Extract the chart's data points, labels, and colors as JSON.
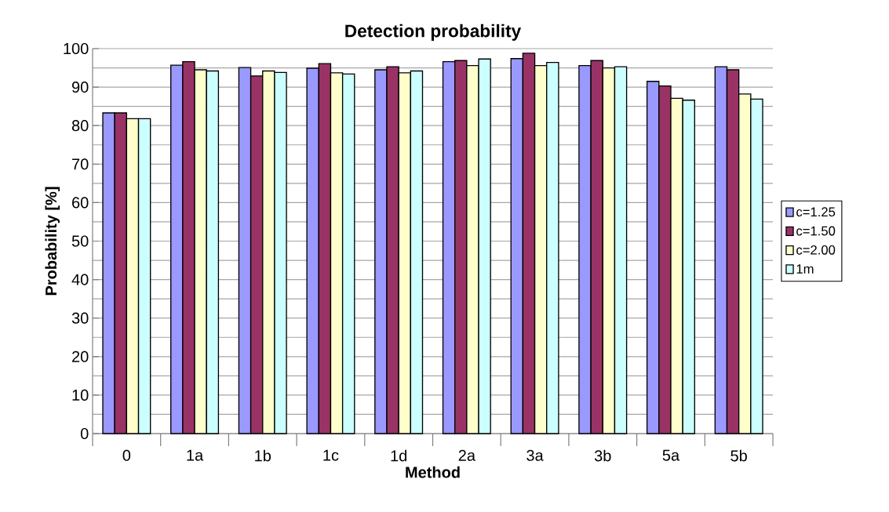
{
  "chart_data": {
    "type": "bar",
    "title": "Detection probability",
    "xlabel": "Method",
    "ylabel": "Probability [%]",
    "categories": [
      "0",
      "1a",
      "1b",
      "1c",
      "1d",
      "2a",
      "3a",
      "3b",
      "5a",
      "5b"
    ],
    "series": [
      {
        "name": "c=1.25",
        "color": "#9999ff",
        "values": [
          83.3,
          95.7,
          95.1,
          94.9,
          94.5,
          96.6,
          97.4,
          95.6,
          91.5,
          95.3
        ]
      },
      {
        "name": "c=1.50",
        "color": "#993366",
        "values": [
          83.3,
          96.6,
          92.9,
          96.1,
          95.3,
          96.9,
          98.8,
          96.9,
          90.3,
          94.5
        ]
      },
      {
        "name": "c=2.00",
        "color": "#ffffcc",
        "values": [
          81.8,
          94.5,
          94.2,
          93.7,
          93.7,
          95.6,
          95.6,
          95.0,
          87.1,
          88.2
        ]
      },
      {
        "name": "1m",
        "color": "#ccffff",
        "values": [
          81.8,
          94.2,
          93.8,
          93.4,
          94.2,
          97.3,
          96.4,
          95.3,
          86.6,
          86.9
        ]
      }
    ],
    "ylim": [
      0,
      100
    ],
    "yticks": [
      0,
      10,
      20,
      30,
      40,
      50,
      60,
      70,
      80,
      90,
      100
    ],
    "grid": "y",
    "legend": "right"
  }
}
